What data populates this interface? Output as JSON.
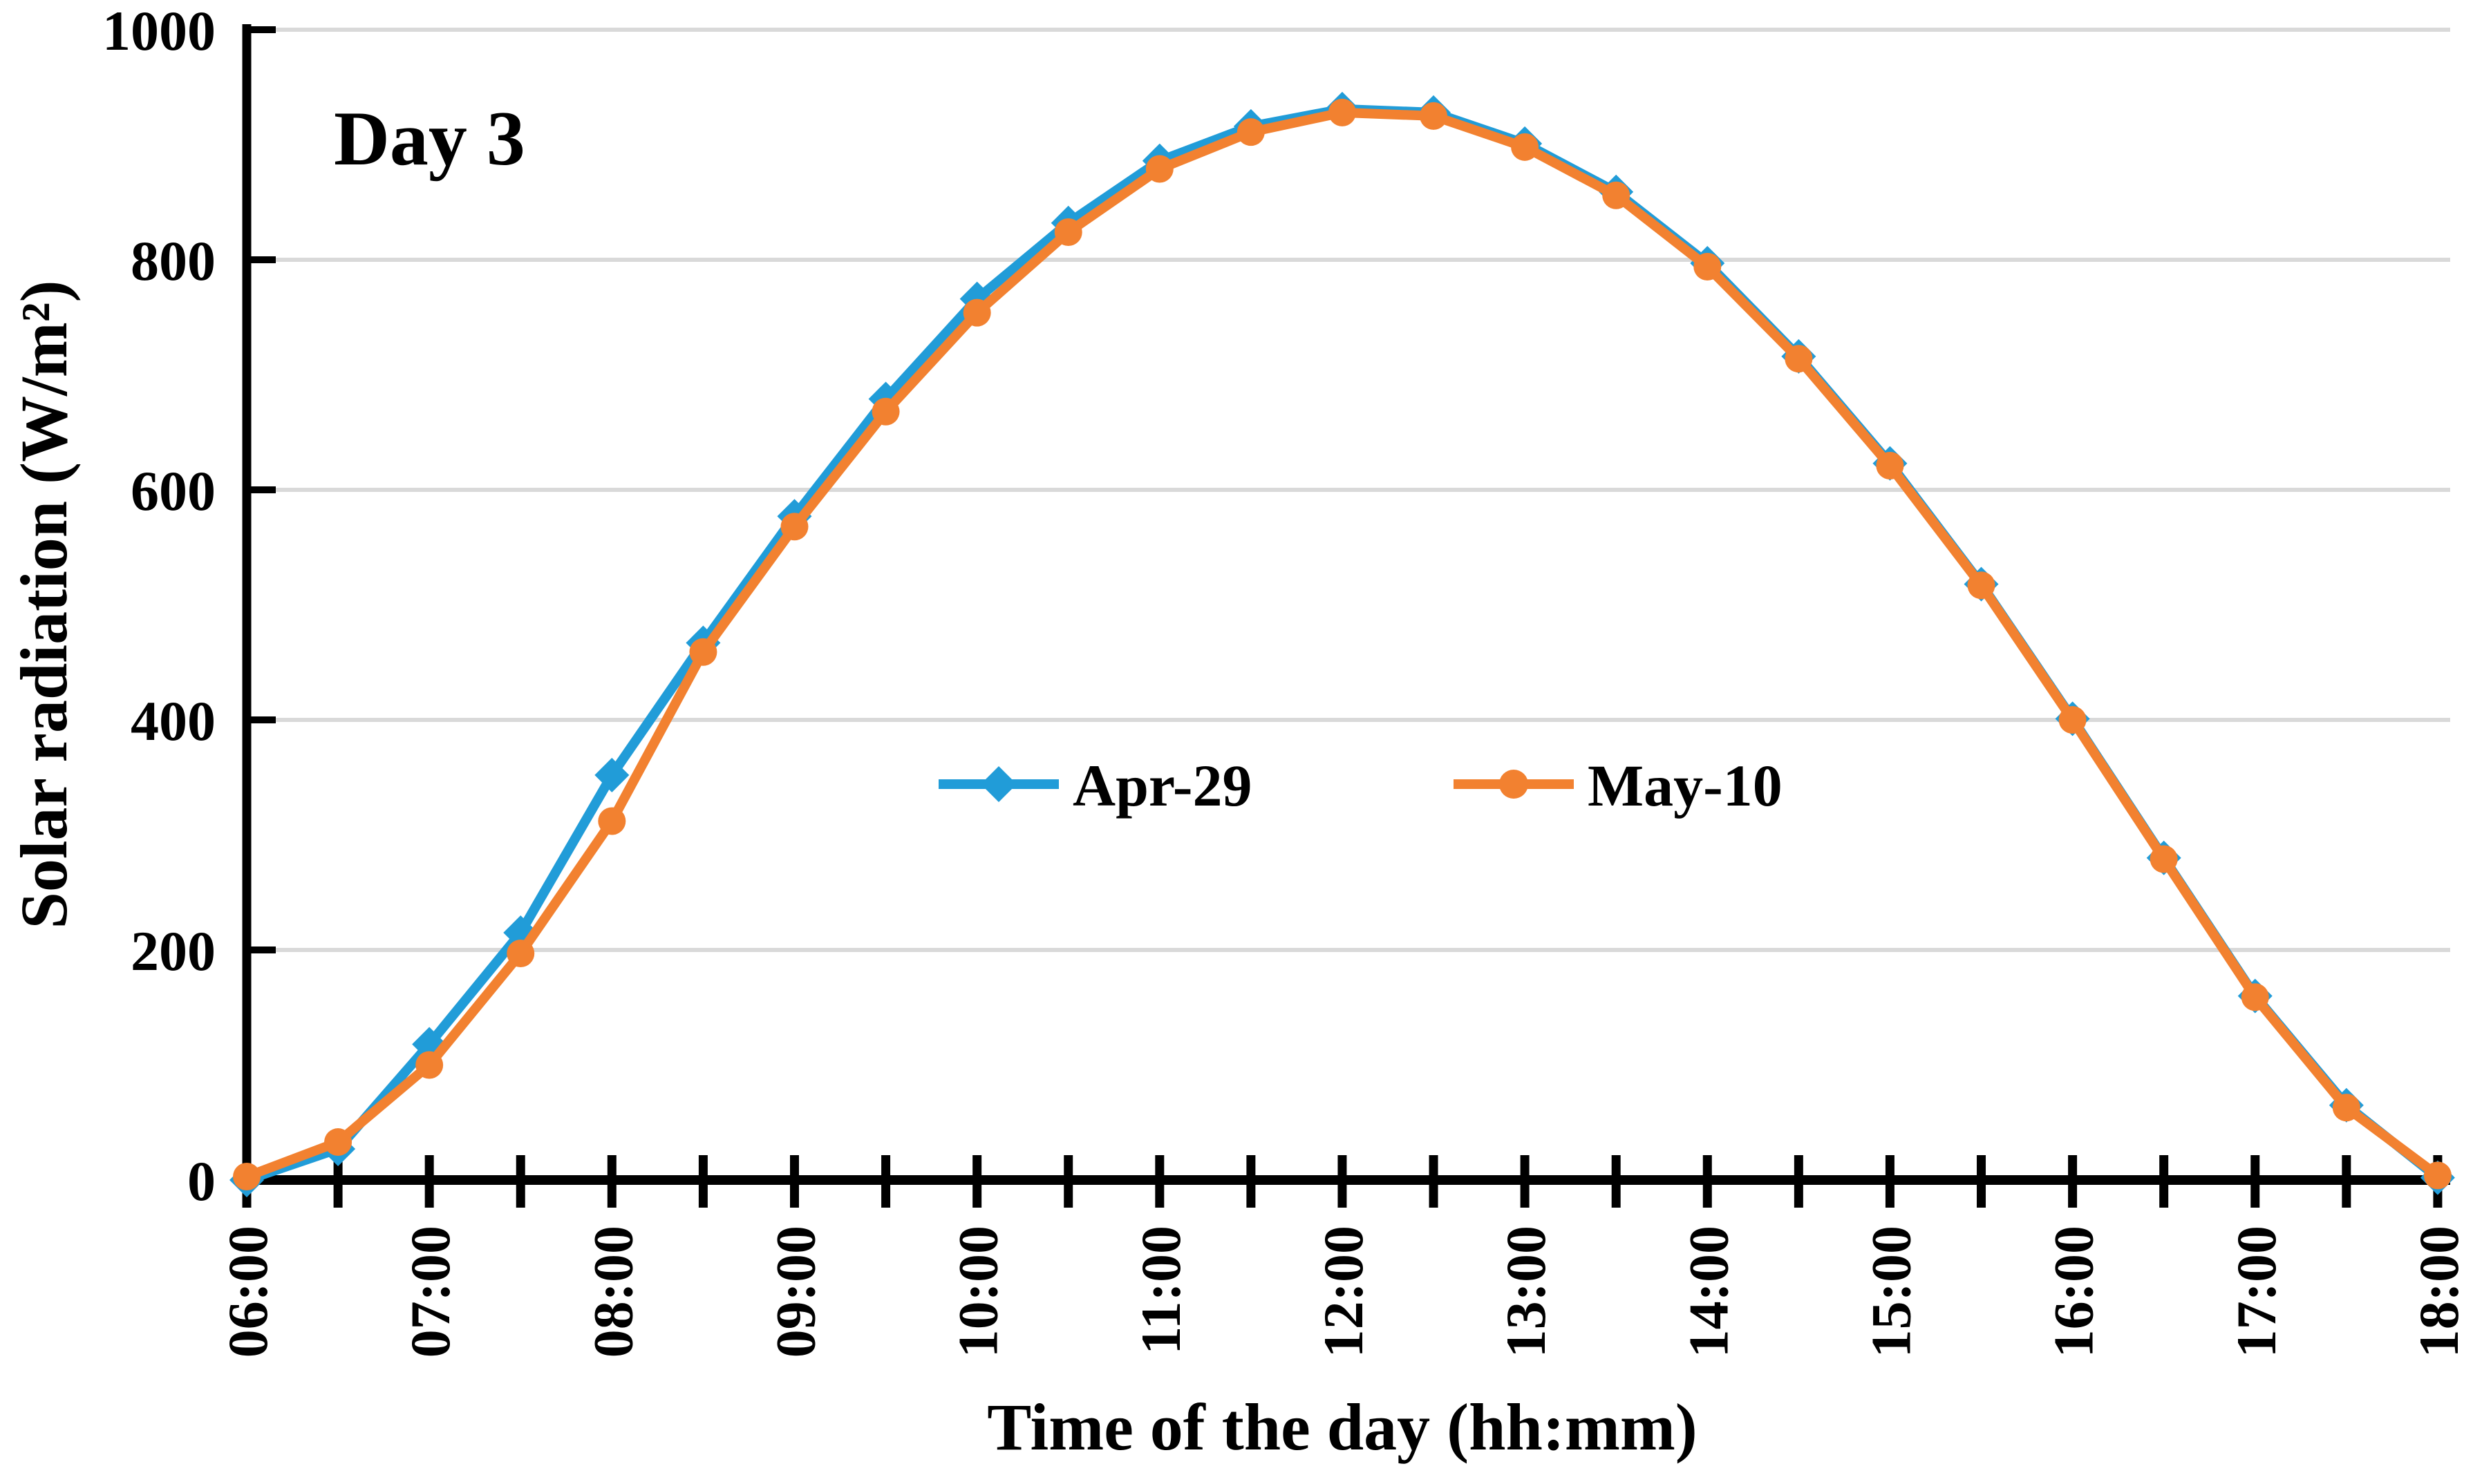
{
  "title": "Day 3",
  "colors": {
    "series_blue": "#219CD8",
    "series_orange": "#F28130",
    "gridline": "#D9D9D9",
    "axis": "#000000",
    "background": "#FFFFFF"
  },
  "legend": {
    "items": [
      {
        "label": "Apr-29",
        "marker": "diamond",
        "color": "#219CD8"
      },
      {
        "label": "May-10",
        "marker": "circle",
        "color": "#F28130"
      }
    ]
  },
  "chart_data": {
    "type": "line",
    "title": "Day 3",
    "xlabel": "Time of the day (hh:mm)",
    "ylabel": "Solar radiation (W/m²)",
    "ylim": [
      0,
      1000
    ],
    "yticks": [
      0,
      200,
      400,
      600,
      800,
      1000
    ],
    "grid": "horizontal",
    "legend_position": "center-inside",
    "x_tick_labels_shown_every": "1 hour",
    "x_minor_tick_interval": "30 min",
    "x": [
      "06:00",
      "06:30",
      "07:00",
      "07:30",
      "08:00",
      "08:30",
      "09:00",
      "09:30",
      "10:00",
      "10:30",
      "11:00",
      "11:30",
      "12:00",
      "12:30",
      "13:00",
      "13:30",
      "14:00",
      "14:30",
      "15:00",
      "15:30",
      "16:00",
      "16:30",
      "17:00",
      "17:30",
      "18:00"
    ],
    "x_hour_labels": [
      "06:00",
      "07:00",
      "08:00",
      "09:00",
      "10:00",
      "11:00",
      "12:00",
      "13:00",
      "14:00",
      "15:00",
      "16:00",
      "17:00",
      "18:00"
    ],
    "series": [
      {
        "name": "Apr-29",
        "marker": "diamond",
        "color": "#219CD8",
        "values": [
          0,
          27,
          118,
          215,
          352,
          467,
          577,
          679,
          766,
          832,
          886,
          916,
          931,
          928,
          901,
          859,
          797,
          716,
          623,
          518,
          401,
          280,
          160,
          65,
          2
        ]
      },
      {
        "name": "May-10",
        "marker": "circle",
        "color": "#F28130",
        "values": [
          3,
          33,
          100,
          197,
          312,
          459,
          568,
          668,
          754,
          824,
          879,
          911,
          928,
          925,
          898,
          856,
          794,
          714,
          621,
          517,
          400,
          279,
          159,
          63,
          4
        ]
      }
    ]
  }
}
